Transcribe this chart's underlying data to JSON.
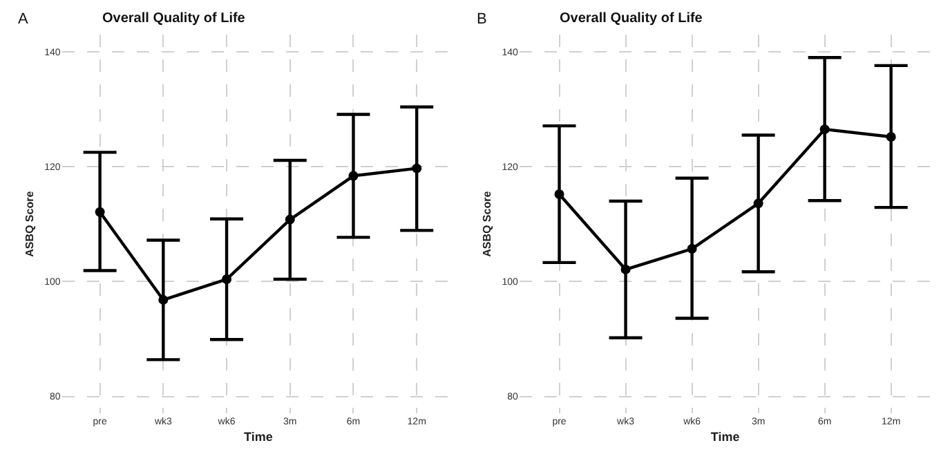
{
  "chart_data": [
    {
      "type": "line",
      "title": "Overall Quality of Life",
      "xlabel": "Time",
      "ylabel": "ASBQ Score",
      "annotations": [
        "A"
      ],
      "categories": [
        "pre",
        "wk3",
        "wk6",
        "3m",
        "6m",
        "12m"
      ],
      "color": "#000000",
      "marker": "circle",
      "line_style": "solid",
      "grid": true,
      "ylim": [
        77,
        143
      ],
      "yticks": [
        80,
        100,
        120,
        140
      ],
      "values": [
        112.1,
        96.8,
        100.4,
        110.8,
        118.4,
        119.7
      ],
      "errors": [
        [
          101.9,
          122.5
        ],
        [
          86.4,
          107.2
        ],
        [
          89.9,
          110.9
        ],
        [
          100.4,
          121.1
        ],
        [
          107.7,
          129.1
        ],
        [
          108.9,
          130.4
        ]
      ]
    },
    {
      "type": "line",
      "title": "Overall Quality of Life",
      "xlabel": "Time",
      "ylabel": "ASBQ Score",
      "annotations": [
        "B"
      ],
      "categories": [
        "pre",
        "wk3",
        "wk6",
        "3m",
        "6m",
        "12m"
      ],
      "color": "#000000",
      "marker": "circle",
      "line_style": "solid",
      "grid": true,
      "ylim": [
        77,
        143
      ],
      "yticks": [
        80,
        100,
        120,
        140
      ],
      "values": [
        115.2,
        102.1,
        105.7,
        113.6,
        126.5,
        125.2
      ],
      "errors": [
        [
          103.3,
          127.1
        ],
        [
          90.2,
          114.0
        ],
        [
          93.6,
          118.0
        ],
        [
          101.7,
          125.5
        ],
        [
          114.1,
          139.0
        ],
        [
          112.9,
          137.6
        ]
      ]
    }
  ]
}
